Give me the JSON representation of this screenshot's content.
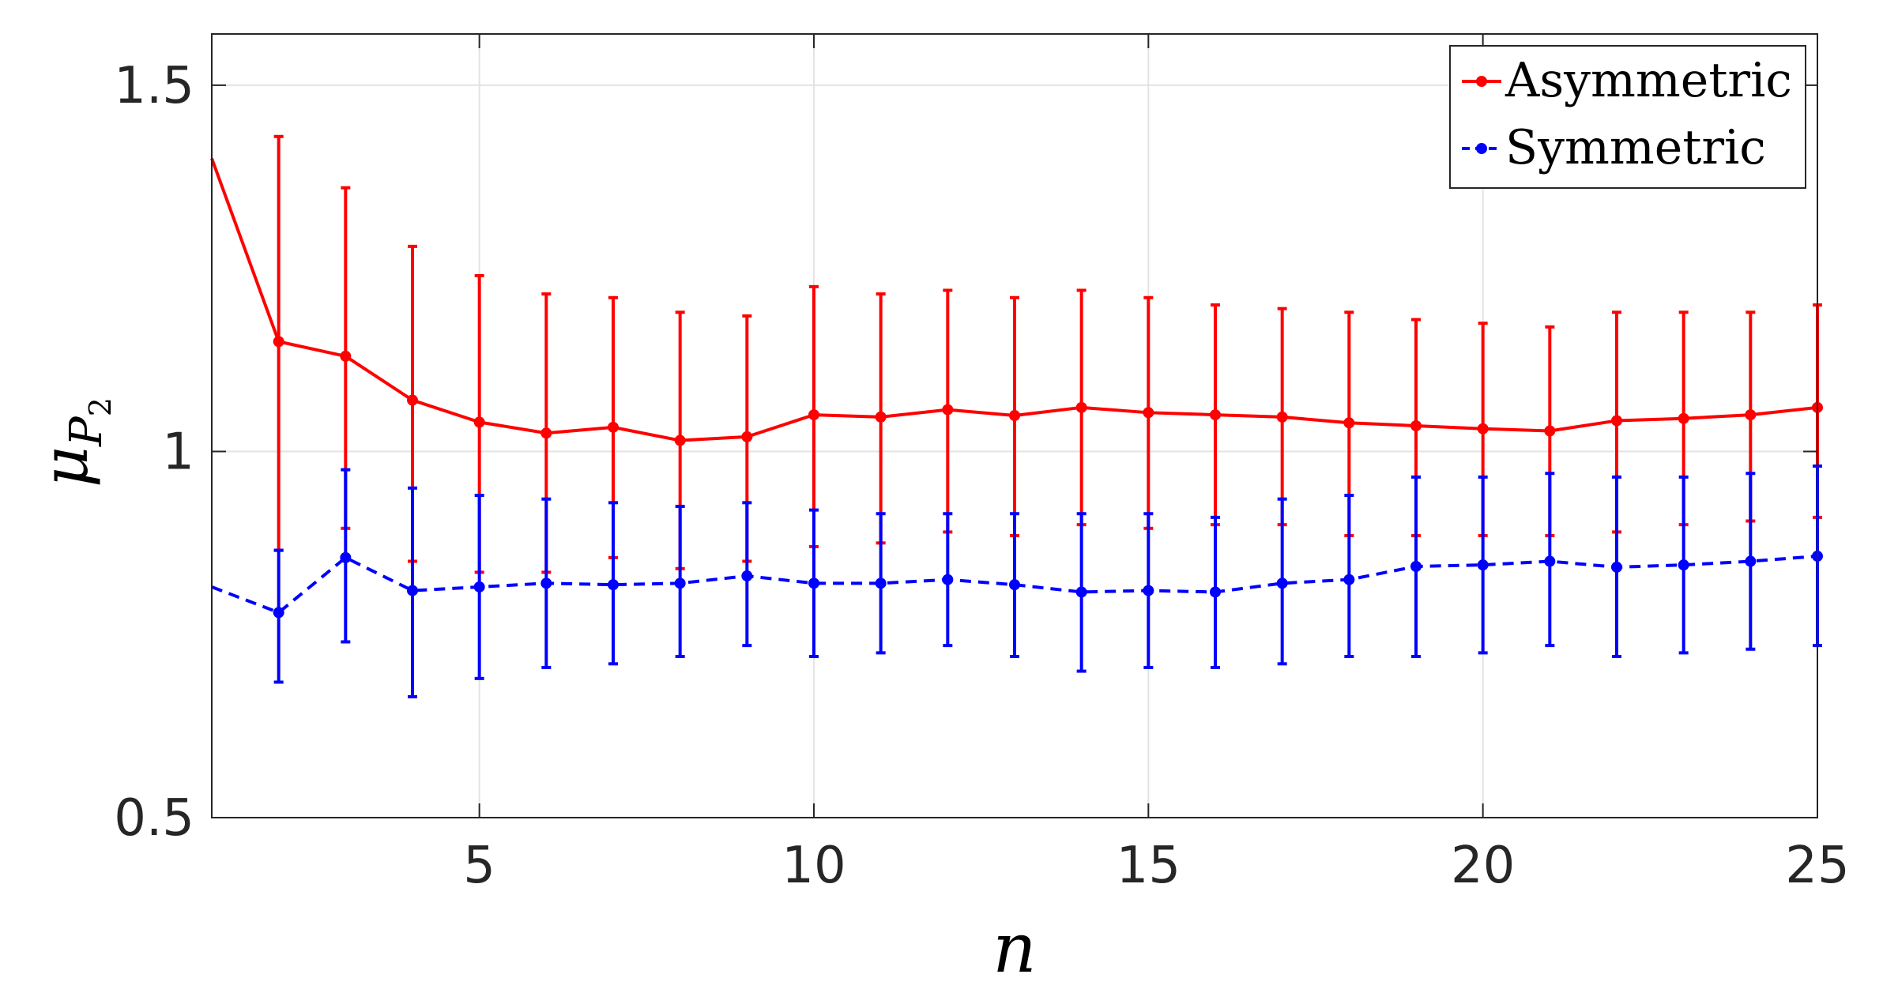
{
  "chart_data": {
    "type": "line",
    "xlabel": "n",
    "ylabel": "μ",
    "ylabel_subscript": "P",
    "ylabel_subsubscript": "2",
    "xlim": [
      1,
      25
    ],
    "ylim": [
      0.5,
      1.57
    ],
    "xticks": [
      5,
      10,
      15,
      20,
      25
    ],
    "xtick_labels": [
      "5",
      "10",
      "15",
      "20",
      "25"
    ],
    "yticks": [
      0.5,
      1,
      1.5
    ],
    "ytick_labels": [
      "0.5",
      "1",
      "1.5"
    ],
    "grid": true,
    "legend_position": "top-right",
    "series": [
      {
        "name": "Asymmetric",
        "color": "#ff0000",
        "line_style": "solid",
        "x": [
          1,
          2,
          3,
          4,
          5,
          6,
          7,
          8,
          9,
          10,
          11,
          12,
          13,
          14,
          15,
          16,
          17,
          18,
          19,
          20,
          21,
          22,
          23,
          24,
          25
        ],
        "y": [
          1.4,
          1.15,
          1.13,
          1.07,
          1.04,
          1.025,
          1.033,
          1.015,
          1.02,
          1.05,
          1.047,
          1.057,
          1.049,
          1.06,
          1.053,
          1.05,
          1.047,
          1.039,
          1.035,
          1.031,
          1.028,
          1.042,
          1.045,
          1.05,
          1.06
        ],
        "err_low": [
          null,
          0.865,
          0.895,
          0.85,
          0.835,
          0.835,
          0.855,
          0.84,
          0.85,
          0.87,
          0.875,
          0.89,
          0.885,
          0.9,
          0.895,
          0.9,
          0.9,
          0.885,
          0.885,
          0.885,
          0.885,
          0.89,
          0.9,
          0.905,
          0.91
        ],
        "err_high": [
          null,
          1.43,
          1.36,
          1.28,
          1.24,
          1.215,
          1.21,
          1.19,
          1.185,
          1.225,
          1.215,
          1.22,
          1.21,
          1.22,
          1.21,
          1.2,
          1.195,
          1.19,
          1.18,
          1.175,
          1.17,
          1.19,
          1.19,
          1.19,
          1.2
        ]
      },
      {
        "name": "Symmetric",
        "color": "#0000ff",
        "line_style": "dashed",
        "x": [
          1,
          2,
          3,
          4,
          5,
          6,
          7,
          8,
          9,
          10,
          11,
          12,
          13,
          14,
          15,
          16,
          17,
          18,
          19,
          20,
          21,
          22,
          23,
          24,
          25
        ],
        "y": [
          0.815,
          0.78,
          0.855,
          0.81,
          0.815,
          0.82,
          0.818,
          0.82,
          0.83,
          0.82,
          0.82,
          0.825,
          0.818,
          0.808,
          0.81,
          0.808,
          0.82,
          0.825,
          0.843,
          0.845,
          0.85,
          0.842,
          0.845,
          0.85,
          0.857
        ],
        "err_low": [
          null,
          0.685,
          0.74,
          0.665,
          0.69,
          0.705,
          0.71,
          0.72,
          0.735,
          0.72,
          0.725,
          0.735,
          0.72,
          0.7,
          0.705,
          0.705,
          0.71,
          0.72,
          0.72,
          0.725,
          0.735,
          0.72,
          0.725,
          0.73,
          0.735
        ],
        "err_high": [
          null,
          0.865,
          0.975,
          0.95,
          0.94,
          0.935,
          0.93,
          0.925,
          0.93,
          0.92,
          0.915,
          0.915,
          0.915,
          0.915,
          0.915,
          0.91,
          0.935,
          0.94,
          0.965,
          0.965,
          0.97,
          0.965,
          0.965,
          0.97,
          0.98
        ]
      }
    ]
  }
}
